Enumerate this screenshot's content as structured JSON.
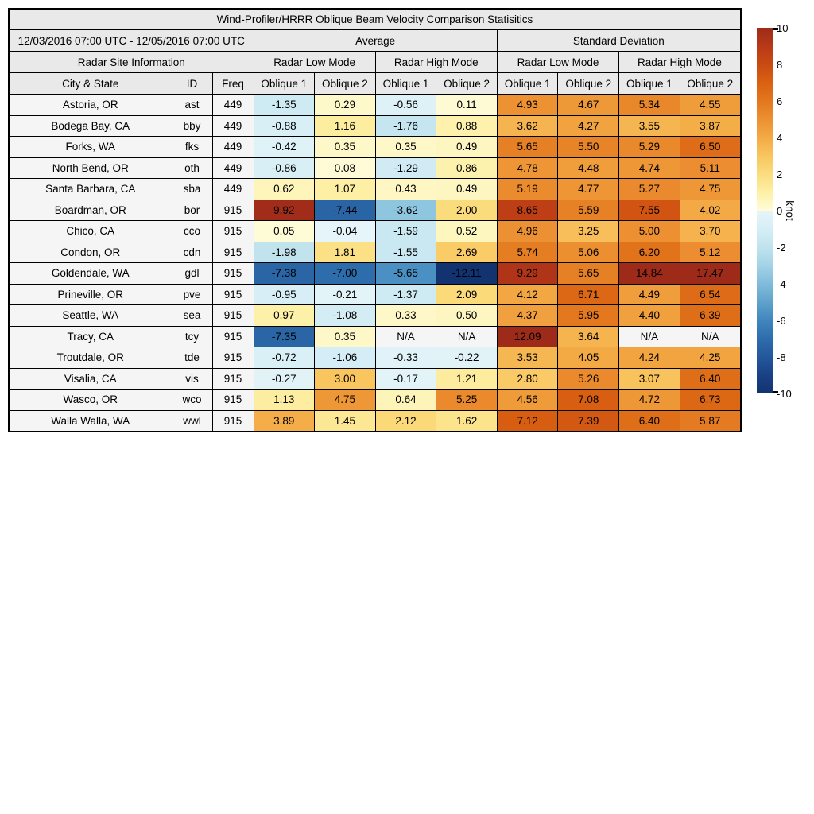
{
  "chart_data": {
    "type": "heatmap",
    "title": "Wind-Profiler/HRRR Oblique Beam Velocity Comparison Statisitics",
    "header": {
      "date_range": "12/03/2016 07:00 UTC - 12/05/2016 07:00 UTC",
      "group_average": "Average",
      "group_stddev": "Standard Deviation",
      "site_info": "Radar Site Information",
      "mode_low": "Radar Low Mode",
      "mode_high": "Radar High Mode",
      "col_city": "City & State",
      "col_id": "ID",
      "col_freq": "Freq",
      "oblique1": "Oblique 1",
      "oblique2": "Oblique 2"
    },
    "value_columns": [
      "avg_low_oblique1",
      "avg_low_oblique2",
      "avg_high_oblique1",
      "avg_high_oblique2",
      "sd_low_oblique1",
      "sd_low_oblique2",
      "sd_high_oblique1",
      "sd_high_oblique2"
    ],
    "rows": [
      {
        "city": "Astoria, OR",
        "id": "ast",
        "freq": "449",
        "values": [
          "-1.35",
          "0.29",
          "-0.56",
          "0.11",
          "4.93",
          "4.67",
          "5.34",
          "4.55"
        ]
      },
      {
        "city": "Bodega Bay, CA",
        "id": "bby",
        "freq": "449",
        "values": [
          "-0.88",
          "1.16",
          "-1.76",
          "0.88",
          "3.62",
          "4.27",
          "3.55",
          "3.87"
        ]
      },
      {
        "city": "Forks, WA",
        "id": "fks",
        "freq": "449",
        "values": [
          "-0.42",
          "0.35",
          "0.35",
          "0.49",
          "5.65",
          "5.50",
          "5.29",
          "6.50"
        ]
      },
      {
        "city": "North Bend, OR",
        "id": "oth",
        "freq": "449",
        "values": [
          "-0.86",
          "0.08",
          "-1.29",
          "0.86",
          "4.78",
          "4.48",
          "4.74",
          "5.11"
        ]
      },
      {
        "city": "Santa Barbara, CA",
        "id": "sba",
        "freq": "449",
        "values": [
          "0.62",
          "1.07",
          "0.43",
          "0.49",
          "5.19",
          "4.77",
          "5.27",
          "4.75"
        ]
      },
      {
        "city": "Boardman, OR",
        "id": "bor",
        "freq": "915",
        "values": [
          "9.92",
          "-7.44",
          "-3.62",
          "2.00",
          "8.65",
          "5.59",
          "7.55",
          "4.02"
        ]
      },
      {
        "city": "Chico, CA",
        "id": "cco",
        "freq": "915",
        "values": [
          "0.05",
          "-0.04",
          "-1.59",
          "0.52",
          "4.96",
          "3.25",
          "5.00",
          "3.70"
        ]
      },
      {
        "city": "Condon, OR",
        "id": "cdn",
        "freq": "915",
        "values": [
          "-1.98",
          "1.81",
          "-1.55",
          "2.69",
          "5.74",
          "5.06",
          "6.20",
          "5.12"
        ]
      },
      {
        "city": "Goldendale, WA",
        "id": "gdl",
        "freq": "915",
        "values": [
          "-7.38",
          "-7.00",
          "-5.65",
          "-12.11",
          "9.29",
          "5.65",
          "14.84",
          "17.47"
        ]
      },
      {
        "city": "Prineville, OR",
        "id": "pve",
        "freq": "915",
        "values": [
          "-0.95",
          "-0.21",
          "-1.37",
          "2.09",
          "4.12",
          "6.71",
          "4.49",
          "6.54"
        ]
      },
      {
        "city": "Seattle, WA",
        "id": "sea",
        "freq": "915",
        "values": [
          "0.97",
          "-1.08",
          "0.33",
          "0.50",
          "4.37",
          "5.95",
          "4.40",
          "6.39"
        ]
      },
      {
        "city": "Tracy, CA",
        "id": "tcy",
        "freq": "915",
        "values": [
          "-7.35",
          "0.35",
          "N/A",
          "N/A",
          "12.09",
          "3.64",
          "N/A",
          "N/A"
        ]
      },
      {
        "city": "Troutdale, OR",
        "id": "tde",
        "freq": "915",
        "values": [
          "-0.72",
          "-1.06",
          "-0.33",
          "-0.22",
          "3.53",
          "4.05",
          "4.24",
          "4.25"
        ]
      },
      {
        "city": "Visalia, CA",
        "id": "vis",
        "freq": "915",
        "values": [
          "-0.27",
          "3.00",
          "-0.17",
          "1.21",
          "2.80",
          "5.26",
          "3.07",
          "6.40"
        ]
      },
      {
        "city": "Wasco, OR",
        "id": "wco",
        "freq": "915",
        "values": [
          "1.13",
          "4.75",
          "0.64",
          "5.25",
          "4.56",
          "7.08",
          "4.72",
          "6.73"
        ]
      },
      {
        "city": "Walla Walla, WA",
        "id": "wwl",
        "freq": "915",
        "values": [
          "3.89",
          "1.45",
          "2.12",
          "1.62",
          "7.12",
          "7.39",
          "6.40",
          "5.87"
        ]
      }
    ],
    "colorbar": {
      "label": "knot",
      "min": -10,
      "max": 10,
      "ticks": [
        "10",
        "8",
        "6",
        "4",
        "2",
        "0",
        "-2",
        "-4",
        "-6",
        "-8",
        "-10"
      ],
      "na_color": "#f5f5f5",
      "anchors": [
        [
          -10,
          "#123370"
        ],
        [
          -9,
          "#1a4186"
        ],
        [
          -8,
          "#23589b"
        ],
        [
          -7,
          "#2e6dac"
        ],
        [
          -6,
          "#4186bd"
        ],
        [
          -5,
          "#5fa2cb"
        ],
        [
          -4,
          "#81bcda"
        ],
        [
          -3,
          "#a3d3e7"
        ],
        [
          -2,
          "#c0e3ee"
        ],
        [
          -1,
          "#d6eef6"
        ],
        [
          -0.001,
          "#e6f5f9"
        ],
        [
          0.001,
          "#fefcda"
        ],
        [
          1,
          "#fdf0a6"
        ],
        [
          2,
          "#fbdc7d"
        ],
        [
          3,
          "#f8c55f"
        ],
        [
          4,
          "#f3aa45"
        ],
        [
          5,
          "#ec9032"
        ],
        [
          6,
          "#e3771e"
        ],
        [
          7,
          "#d96111"
        ],
        [
          8,
          "#ca4a13"
        ],
        [
          9,
          "#b73917"
        ],
        [
          10,
          "#9e2b19"
        ]
      ]
    }
  }
}
